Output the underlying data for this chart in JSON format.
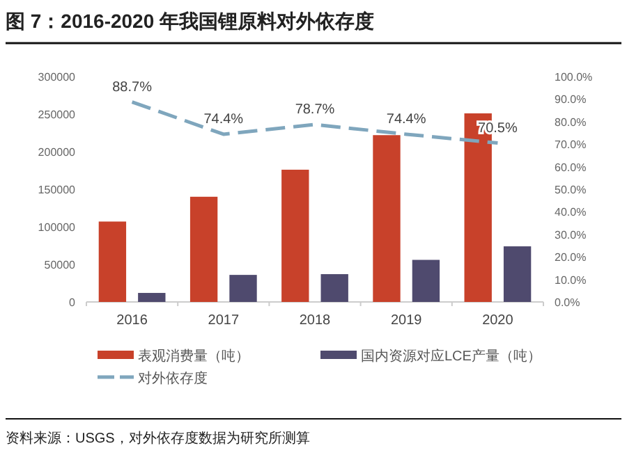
{
  "chart_data": {
    "type": "bar",
    "title": "图 7：2016-2020 年我国锂原料对外依存度",
    "categories": [
      "2016",
      "2017",
      "2018",
      "2019",
      "2020"
    ],
    "series": [
      {
        "name": "表观消费量（吨）",
        "color": "#c8412a",
        "values": [
          107000,
          140000,
          176000,
          222000,
          251000
        ]
      },
      {
        "name": "国内资源对应LCE产量（吨）",
        "color": "#4f4a6e",
        "values": [
          12000,
          36000,
          37000,
          56000,
          74000
        ]
      },
      {
        "name": "对外依存度",
        "type": "line",
        "axis": "y2",
        "color": "#7fa6bd",
        "line_style": "dashed",
        "values": [
          88.7,
          74.4,
          78.7,
          74.4,
          70.5
        ],
        "value_labels": [
          "88.7%",
          "74.4%",
          "78.7%",
          "74.4%",
          "70.5%"
        ]
      }
    ],
    "ylim": [
      0,
      300000
    ],
    "yticks": [
      0,
      50000,
      100000,
      150000,
      200000,
      250000,
      300000
    ],
    "y2lim": [
      0,
      100
    ],
    "y2ticks": [
      {
        "value": 0,
        "label": "0.0%"
      },
      {
        "value": 10,
        "label": "10.0%"
      },
      {
        "value": 20,
        "label": "20.0%"
      },
      {
        "value": 30,
        "label": "30.0%"
      },
      {
        "value": 40,
        "label": "40.0%"
      },
      {
        "value": 50,
        "label": "50.0%"
      },
      {
        "value": 60,
        "label": "60.0%"
      },
      {
        "value": 70,
        "label": "70.0%"
      },
      {
        "value": 80,
        "label": "80.0%"
      },
      {
        "value": 90,
        "label": "90.0%"
      },
      {
        "value": 100,
        "label": "100.0%"
      }
    ],
    "grid": false,
    "legend": "bottom",
    "annotations": [
      "资料来源：USGS，对外依存度数据为研究所测算"
    ]
  }
}
